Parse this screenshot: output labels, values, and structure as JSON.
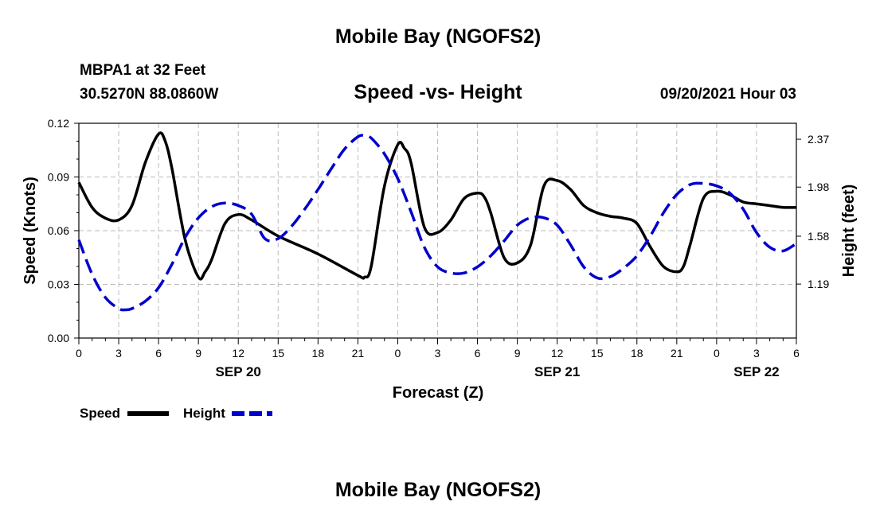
{
  "header": {
    "title": "Mobile Bay (NGOFS2)",
    "station": "MBPA1 at 32 Feet",
    "coords": "30.5270N  88.0860W",
    "chart_title": "Speed -vs- Height",
    "date": "09/20/2021 Hour 03"
  },
  "footer": {
    "title": "Mobile Bay (NGOFS2)"
  },
  "legend": {
    "speed_label": "Speed",
    "height_label": "Height"
  },
  "colors": {
    "speed": "#000000",
    "height": "#0000cc",
    "grid": "#bbbbbb"
  },
  "chart_data": {
    "type": "line",
    "title": "Speed -vs- Height",
    "xlabel": "Forecast (Z)",
    "ylabel": "Speed (Knots)",
    "y2label": "Height (feet)",
    "xlim": [
      0,
      54
    ],
    "ylim": [
      0,
      0.12
    ],
    "y2lim": [
      0.75,
      2.5
    ],
    "x_ticks": [
      0,
      3,
      6,
      9,
      12,
      15,
      18,
      21,
      24,
      27,
      30,
      33,
      36,
      39,
      42,
      45,
      48,
      51,
      54
    ],
    "x_tick_labels": [
      "0",
      "3",
      "6",
      "9",
      "12",
      "15",
      "18",
      "21",
      "0",
      "3",
      "6",
      "9",
      "12",
      "15",
      "18",
      "21",
      "0",
      "3",
      "6"
    ],
    "y_ticks": [
      0.0,
      0.03,
      0.06,
      0.09,
      0.12
    ],
    "y_tick_labels": [
      "0.00",
      "0.03",
      "0.06",
      "0.09",
      "0.12"
    ],
    "y2_ticks": [
      1.19,
      1.58,
      1.98,
      2.37
    ],
    "y2_tick_labels": [
      "1.19",
      "1.58",
      "1.98",
      "2.37"
    ],
    "date_labels": [
      {
        "x": 12,
        "label": "SEP 20"
      },
      {
        "x": 36,
        "label": "SEP 21"
      },
      {
        "x": 51,
        "label": "SEP 22"
      }
    ],
    "grid": true,
    "legend_position": "bottom-left",
    "series": [
      {
        "name": "Speed",
        "axis": "left",
        "style": "solid",
        "x": [
          0,
          1,
          2,
          3,
          4,
          5,
          6,
          6.5,
          7,
          8,
          9,
          9.5,
          10,
          11,
          12,
          13,
          15,
          18,
          21,
          21.5,
          22,
          23,
          24,
          24.5,
          25,
          26,
          27,
          28,
          29,
          30,
          30.5,
          31,
          32,
          33,
          34,
          35,
          36,
          37,
          38,
          39,
          40,
          41,
          42,
          43,
          44,
          45,
          45.5,
          46,
          47,
          48,
          49,
          50,
          51,
          52,
          53,
          54
        ],
        "values": [
          0.087,
          0.073,
          0.067,
          0.066,
          0.074,
          0.098,
          0.114,
          0.11,
          0.095,
          0.055,
          0.034,
          0.037,
          0.044,
          0.064,
          0.069,
          0.066,
          0.057,
          0.047,
          0.035,
          0.034,
          0.04,
          0.085,
          0.108,
          0.106,
          0.098,
          0.062,
          0.059,
          0.066,
          0.078,
          0.081,
          0.079,
          0.07,
          0.045,
          0.042,
          0.052,
          0.085,
          0.088,
          0.083,
          0.074,
          0.07,
          0.068,
          0.067,
          0.064,
          0.051,
          0.04,
          0.037,
          0.04,
          0.052,
          0.078,
          0.082,
          0.08,
          0.076,
          0.075,
          0.074,
          0.073,
          0.073
        ]
      },
      {
        "name": "Height",
        "axis": "right",
        "style": "dashed",
        "x": [
          0,
          1,
          2,
          3,
          3.5,
          4,
          5,
          6,
          7,
          8,
          9,
          10,
          11,
          12,
          13,
          14,
          15,
          16,
          17,
          18,
          19,
          20,
          21,
          21.5,
          22,
          23,
          24,
          25,
          26,
          27,
          28,
          29,
          30,
          31,
          32,
          33,
          34,
          35,
          36,
          37,
          38,
          39,
          40,
          41,
          42,
          43,
          44,
          45,
          46,
          47,
          48,
          49,
          50,
          51,
          52,
          53,
          54
        ],
        "values": [
          1.55,
          1.27,
          1.08,
          0.99,
          0.98,
          0.99,
          1.05,
          1.16,
          1.35,
          1.57,
          1.73,
          1.82,
          1.85,
          1.83,
          1.76,
          1.56,
          1.56,
          1.66,
          1.8,
          1.96,
          2.13,
          2.29,
          2.39,
          2.4,
          2.38,
          2.25,
          2.05,
          1.78,
          1.49,
          1.33,
          1.28,
          1.28,
          1.33,
          1.42,
          1.54,
          1.67,
          1.73,
          1.73,
          1.67,
          1.51,
          1.33,
          1.24,
          1.25,
          1.32,
          1.42,
          1.58,
          1.77,
          1.92,
          2.0,
          2.01,
          1.99,
          1.93,
          1.8,
          1.61,
          1.49,
          1.46,
          1.52
        ]
      }
    ]
  }
}
